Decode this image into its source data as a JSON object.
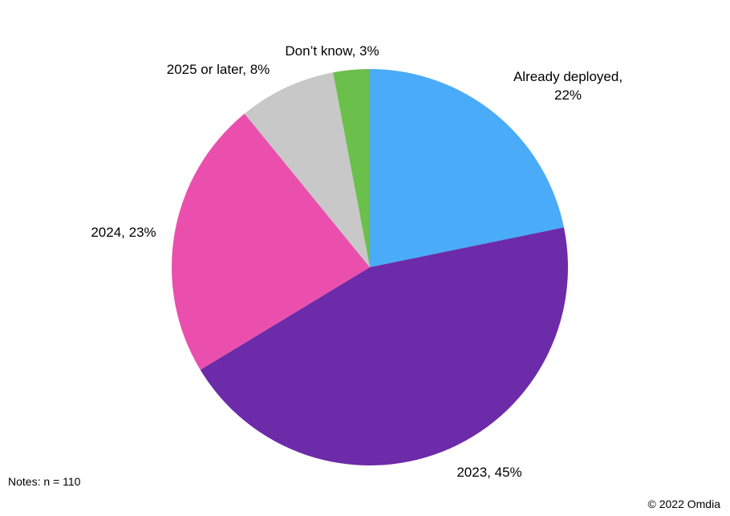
{
  "chart_data": {
    "type": "pie",
    "values": [
      22,
      45,
      23,
      8,
      3
    ],
    "value_labels": [
      "Already deployed, 22%",
      "2023, 45%",
      "2024, 23%",
      "2025 or later, 8%",
      "Don’t know, 3%"
    ],
    "colors": [
      "#4aabf8",
      "#6c2ba8",
      "#ea4fae",
      "#c8c8c8",
      "#6bbf4b"
    ],
    "notes": "Notes: n = 110",
    "source": "© 2022 Omdia"
  }
}
